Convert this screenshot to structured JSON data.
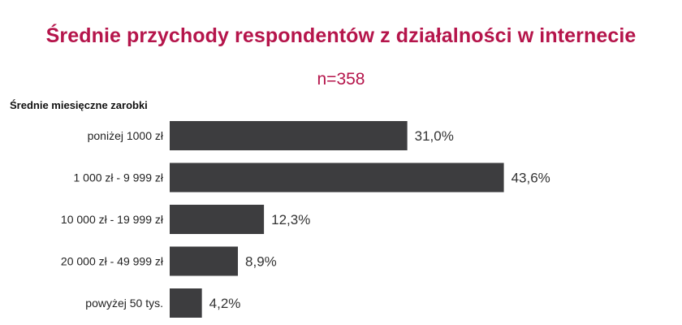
{
  "title": "Średnie przychody respondentów z działalności w internecie",
  "subtitle": "n=358",
  "colors": {
    "title": "#b5154b",
    "bar": "#3d3d3f"
  },
  "chart_data": {
    "type": "bar",
    "orientation": "horizontal",
    "ylabel": "Średnie miesięczne zarobki",
    "categories": [
      "poniżej 1000 zł",
      "1 000 zł - 9 999 zł",
      "10 000 zł - 19 999 zł",
      "20 000 zł - 49 999 zł",
      "powyżej 50 tys."
    ],
    "values": [
      31.0,
      43.6,
      12.3,
      8.9,
      4.2
    ],
    "value_labels": [
      "31,0%",
      "43,6%",
      "12,3%",
      "8,9%",
      "4,2%"
    ],
    "xlim": [
      0,
      100
    ],
    "grid": false
  }
}
